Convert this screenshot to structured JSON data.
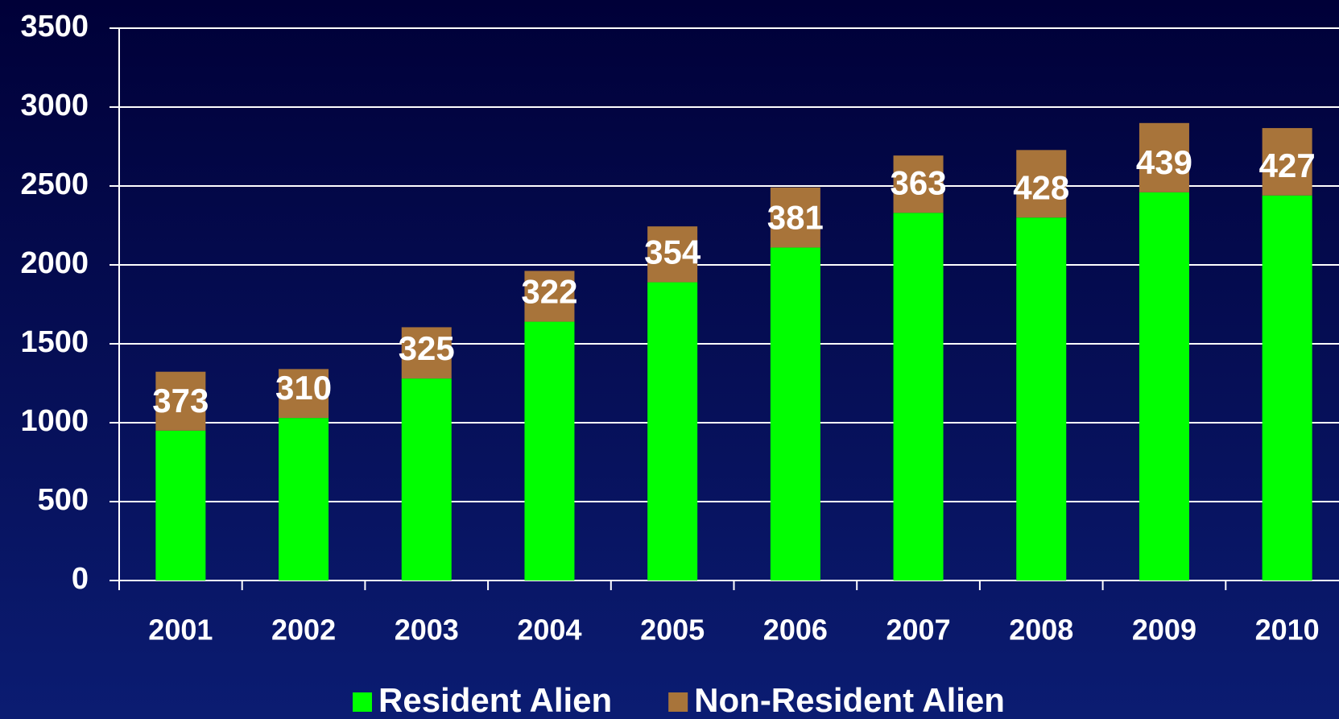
{
  "chart_data": {
    "type": "stacked_bar",
    "categories": [
      "2001",
      "2002",
      "2003",
      "2004",
      "2005",
      "2006",
      "2007",
      "2008",
      "2009",
      "2010"
    ],
    "series": [
      {
        "name": "Resident Alien",
        "color": "#00ff00",
        "values": [
          950,
          1030,
          1280,
          1640,
          1890,
          2110,
          2330,
          2300,
          2460,
          2440
        ]
      },
      {
        "name": "Non-Resident Alien",
        "color": "#a8743a",
        "values": [
          373,
          310,
          325,
          322,
          354,
          381,
          363,
          428,
          439,
          427
        ]
      }
    ],
    "ylim": [
      0,
      3500
    ],
    "yticks": [
      0,
      500,
      1000,
      1500,
      2000,
      2500,
      3000,
      3500
    ],
    "grid": true,
    "legend": "bottom"
  }
}
